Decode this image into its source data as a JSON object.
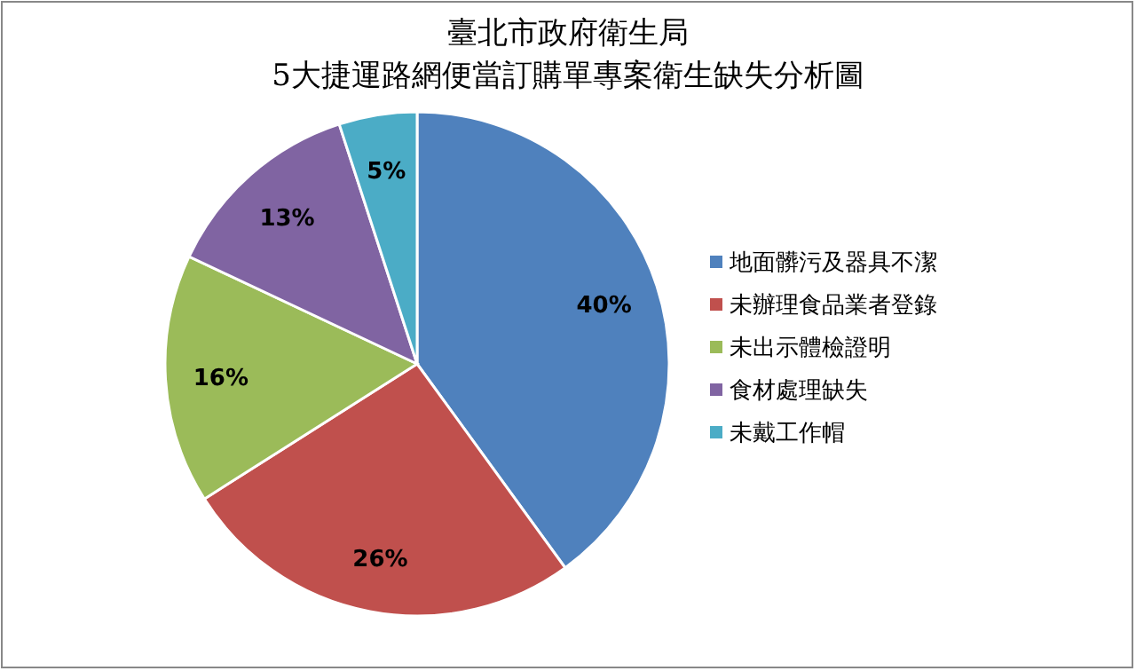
{
  "chart_data": {
    "type": "pie",
    "title": "臺北市政府衛生局\n5大捷運路網便當訂購單專案衛生缺失分析圖",
    "categories": [
      "地面髒污及器具不潔",
      "未辦理食品業者登錄",
      "未出示體檢證明",
      "食材處理缺失",
      "未戴工作帽"
    ],
    "values": [
      40,
      26,
      16,
      13,
      5
    ],
    "colors": [
      "#4f81bd",
      "#c0504d",
      "#9bbb59",
      "#8064a2",
      "#4bacc6"
    ],
    "value_labels": [
      "40%",
      "26%",
      "16%",
      "13%",
      "5%"
    ],
    "legend": "right"
  }
}
